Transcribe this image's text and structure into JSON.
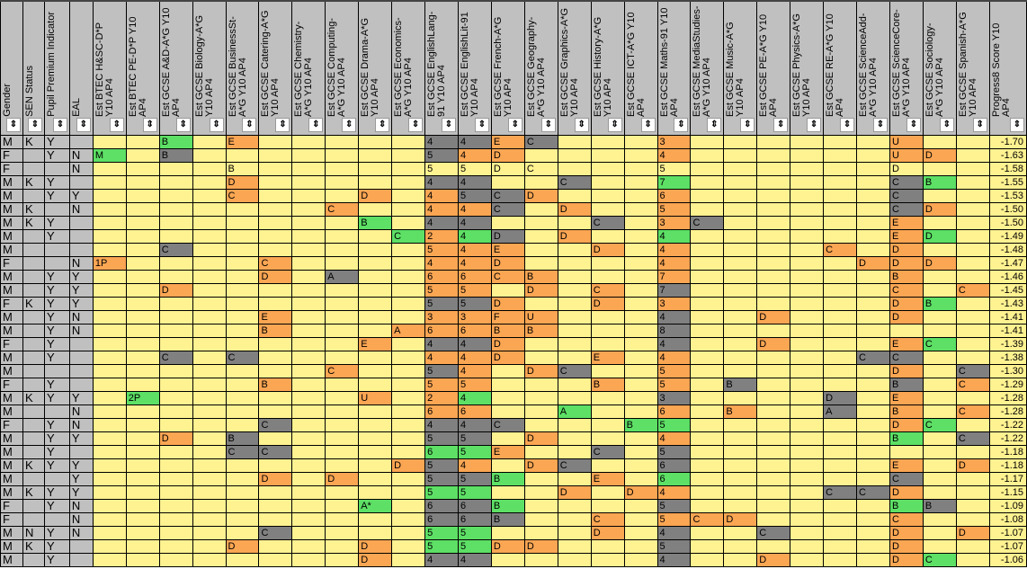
{
  "colors": {
    "yellow": "#fff291",
    "green": "#5de065",
    "orange": "#fba653",
    "dark": "#808080",
    "header": "#c0c0c0"
  },
  "sort_icon": "up-down-arrows-icon",
  "fixed_headers": [
    "Gender",
    "SEN Status",
    "Pupil Premium Indicator",
    "EAL"
  ],
  "subject_headers": [
    "Est BTEC H&SC-D*P Y10 AP4",
    "Est BTEC PE-D*P Y10 AP4",
    "Est GCSE A&D-A*G Y10 AP4",
    "Est GCSE Biology-A*G Y10 AP4",
    "Est GCSE BusinessSt-A*G Y10 AP4",
    "Est GCSE Catering-A*G Y10 AP4",
    "Est GCSE Chemistry-A*G Y10 AP4",
    "Est GCSE Computing-A*G Y10 AP4",
    "Est GCSE Drama-A*G Y10 AP4",
    "Est GCSE Economics-A*G Y10 AP4",
    "Est GCSE EnglishLang-91 Y10 AP4",
    "Est GCSE EnglishLit-91 Y10 AP4",
    "Est GCSE French-A*G Y10 AP4",
    "Est GCSE Geography-A*G Y10 AP4",
    "Est GCSE Graphics-A*G Y10 AP4",
    "Est GCSE History-A*G Y10 AP4",
    "Est GCSE ICT-A*G Y10 AP4",
    "Est GCSE Maths-91 Y10 AP4",
    "Est GCSE MediaStudies-A*G Y10 AP4",
    "Est GCSE Music-A*G Y10 AP4",
    "Est GCSE PE-A*G Y10 AP4",
    "Est GCSE Physics-A*G Y10 AP4",
    "Est GCSE RE-A*G Y10 AP4",
    "Est GCSE ScienceAdd-A*G Y10 AP4",
    "Est GCSE ScienceCore-A*G Y10 AP4",
    "Est GCSE Sociology-A*G Y10 AP4",
    "Est GCSE Spanish-A*G Y10 AP4"
  ],
  "p8_header": "Progress8 Score Y10 AP4",
  "rows": [
    {
      "f": [
        "M",
        "K",
        "Y",
        ""
      ],
      "c": {
        "2": [
          "B",
          "g"
        ],
        "4": [
          "E",
          "o"
        ],
        "10": [
          "4",
          "d"
        ],
        "11": [
          "4",
          "d"
        ],
        "12": [
          "E",
          "o"
        ],
        "13": [
          "C",
          "d"
        ],
        "17": [
          "3",
          "o"
        ],
        "24": [
          "U",
          "o"
        ]
      },
      "p8": "-1.70"
    },
    {
      "f": [
        "F",
        "",
        "Y",
        "N"
      ],
      "c": {
        "0": [
          "M",
          "g"
        ],
        "2": [
          "B",
          "d"
        ],
        "10": [
          "5",
          "d"
        ],
        "11": [
          "4",
          "o"
        ],
        "12": [
          "D",
          "o"
        ],
        "17": [
          "4",
          "o"
        ],
        "24": [
          "U",
          "o"
        ],
        "25": [
          "D",
          "o"
        ]
      },
      "p8": "-1.63"
    },
    {
      "f": [
        "F",
        "",
        "",
        "N"
      ],
      "c": {
        "4": [
          "B",
          "y"
        ],
        "10": [
          "5",
          "y"
        ],
        "11": [
          "5",
          "y"
        ],
        "12": [
          "D",
          "y"
        ],
        "13": [
          "C",
          "y"
        ],
        "17": [
          "5",
          "y"
        ],
        "24": [
          "D",
          "y"
        ]
      },
      "p8": "-1.58"
    },
    {
      "f": [
        "M",
        "K",
        "Y",
        ""
      ],
      "c": {
        "4": [
          "D",
          "o"
        ],
        "10": [
          "4",
          "d"
        ],
        "11": [
          "4",
          "d"
        ],
        "14": [
          "C",
          "d"
        ],
        "17": [
          "7",
          "g"
        ],
        "24": [
          "C",
          "d"
        ],
        "25": [
          "B",
          "g"
        ]
      },
      "p8": "-1.55"
    },
    {
      "f": [
        "M",
        "",
        "Y",
        "Y"
      ],
      "c": {
        "4": [
          "C",
          "o"
        ],
        "8": [
          "D",
          "o"
        ],
        "10": [
          "4",
          "o"
        ],
        "11": [
          "5",
          "d"
        ],
        "12": [
          "C",
          "d"
        ],
        "13": [
          "D",
          "o"
        ],
        "17": [
          "6",
          "o"
        ],
        "24": [
          "C",
          "d"
        ]
      },
      "p8": "-1.53"
    },
    {
      "f": [
        "M",
        "K",
        "",
        "N"
      ],
      "c": {
        "7": [
          "C",
          "o"
        ],
        "10": [
          "4",
          "o"
        ],
        "11": [
          "4",
          "o"
        ],
        "12": [
          "C",
          "d"
        ],
        "14": [
          "D",
          "o"
        ],
        "17": [
          "5",
          "o"
        ],
        "24": [
          "C",
          "d"
        ],
        "25": [
          "D",
          "o"
        ]
      },
      "p8": "-1.50"
    },
    {
      "f": [
        "M",
        "K",
        "Y",
        ""
      ],
      "c": {
        "8": [
          "B",
          "g"
        ],
        "10": [
          "4",
          "d"
        ],
        "11": [
          "4",
          "d"
        ],
        "15": [
          "C",
          "d"
        ],
        "17": [
          "3",
          "o"
        ],
        "18": [
          "C",
          "d"
        ],
        "24": [
          "E",
          "o"
        ]
      },
      "p8": "-1.50"
    },
    {
      "f": [
        "M",
        "",
        "Y",
        ""
      ],
      "c": {
        "9": [
          "C",
          "g"
        ],
        "10": [
          "2",
          "o"
        ],
        "11": [
          "4",
          "g"
        ],
        "12": [
          "D",
          "d"
        ],
        "14": [
          "D",
          "o"
        ],
        "17": [
          "4",
          "g"
        ],
        "24": [
          "E",
          "o"
        ],
        "25": [
          "D",
          "g"
        ]
      },
      "p8": "-1.49"
    },
    {
      "f": [
        "M",
        "",
        "",
        ""
      ],
      "c": {
        "2": [
          "C",
          "d"
        ],
        "10": [
          "5",
          "o"
        ],
        "11": [
          "4",
          "o"
        ],
        "12": [
          "E",
          "o"
        ],
        "15": [
          "D",
          "o"
        ],
        "17": [
          "4",
          "o"
        ],
        "22": [
          "C",
          "o"
        ],
        "24": [
          "D",
          "o"
        ]
      },
      "p8": "-1.48"
    },
    {
      "f": [
        "F",
        "",
        "",
        "N"
      ],
      "c": {
        "0": [
          "1P",
          "o"
        ],
        "5": [
          "C",
          "o"
        ],
        "10": [
          "4",
          "o"
        ],
        "11": [
          "4",
          "o"
        ],
        "12": [
          "D",
          "o"
        ],
        "17": [
          "4",
          "o"
        ],
        "23": [
          "D",
          "o"
        ],
        "24": [
          "D",
          "o"
        ],
        "25": [
          "D",
          "o"
        ]
      },
      "p8": "-1.47"
    },
    {
      "f": [
        "M",
        "",
        "Y",
        "Y"
      ],
      "c": {
        "5": [
          "D",
          "o"
        ],
        "7": [
          "A",
          "d"
        ],
        "10": [
          "6",
          "o"
        ],
        "11": [
          "6",
          "o"
        ],
        "12": [
          "C",
          "o"
        ],
        "13": [
          "B",
          "o"
        ],
        "17": [
          "7",
          "o"
        ],
        "24": [
          "B",
          "o"
        ]
      },
      "p8": "-1.46"
    },
    {
      "f": [
        "M",
        "",
        "Y",
        "Y"
      ],
      "c": {
        "2": [
          "D",
          "o"
        ],
        "10": [
          "5",
          "o"
        ],
        "11": [
          "5",
          "o"
        ],
        "13": [
          "D",
          "o"
        ],
        "15": [
          "C",
          "o"
        ],
        "17": [
          "7",
          "d"
        ],
        "24": [
          "C",
          "o"
        ],
        "26": [
          "C",
          "o"
        ]
      },
      "p8": "-1.45"
    },
    {
      "f": [
        "F",
        "K",
        "Y",
        "Y"
      ],
      "c": {
        "10": [
          "5",
          "d"
        ],
        "11": [
          "5",
          "d"
        ],
        "12": [
          "D",
          "o"
        ],
        "15": [
          "D",
          "o"
        ],
        "17": [
          "3",
          "o"
        ],
        "24": [
          "D",
          "o"
        ],
        "25": [
          "B",
          "g"
        ]
      },
      "p8": "-1.43"
    },
    {
      "f": [
        "M",
        "",
        "Y",
        "N"
      ],
      "c": {
        "5": [
          "E",
          "o"
        ],
        "10": [
          "3",
          "o"
        ],
        "11": [
          "3",
          "o"
        ],
        "12": [
          "F",
          "o"
        ],
        "13": [
          "U",
          "o"
        ],
        "17": [
          "4",
          "d"
        ],
        "20": [
          "D",
          "o"
        ],
        "24": [
          "D",
          "o"
        ]
      },
      "p8": "-1.41"
    },
    {
      "f": [
        "M",
        "",
        "Y",
        "N"
      ],
      "c": {
        "5": [
          "B",
          "o"
        ],
        "9": [
          "A",
          "o"
        ],
        "10": [
          "6",
          "o"
        ],
        "11": [
          "6",
          "o"
        ],
        "12": [
          "B",
          "o"
        ],
        "13": [
          "B",
          "o"
        ],
        "17": [
          "8",
          "d"
        ]
      },
      "p8": "-1.41"
    },
    {
      "f": [
        "F",
        "",
        "Y",
        ""
      ],
      "c": {
        "8": [
          "E",
          "o"
        ],
        "10": [
          "4",
          "d"
        ],
        "11": [
          "4",
          "d"
        ],
        "12": [
          "D",
          "o"
        ],
        "17": [
          "4",
          "d"
        ],
        "20": [
          "D",
          "o"
        ],
        "24": [
          "E",
          "o"
        ],
        "25": [
          "C",
          "g"
        ]
      },
      "p8": "-1.39"
    },
    {
      "f": [
        "M",
        "",
        "Y",
        ""
      ],
      "c": {
        "2": [
          "C",
          "d"
        ],
        "4": [
          "C",
          "d"
        ],
        "10": [
          "4",
          "o"
        ],
        "11": [
          "4",
          "o"
        ],
        "12": [
          "D",
          "o"
        ],
        "15": [
          "E",
          "o"
        ],
        "17": [
          "4",
          "o"
        ],
        "23": [
          "C",
          "d"
        ],
        "24": [
          "C",
          "d"
        ]
      },
      "p8": "-1.38"
    },
    {
      "f": [
        "M",
        "",
        "",
        ""
      ],
      "c": {
        "7": [
          "C",
          "o"
        ],
        "10": [
          "5",
          "d"
        ],
        "11": [
          "4",
          "o"
        ],
        "13": [
          "D",
          "o"
        ],
        "14": [
          "C",
          "d"
        ],
        "17": [
          "5",
          "o"
        ],
        "24": [
          "D",
          "o"
        ],
        "26": [
          "C",
          "d"
        ]
      },
      "p8": "-1.30"
    },
    {
      "f": [
        "F",
        "",
        "Y",
        ""
      ],
      "c": {
        "5": [
          "B",
          "o"
        ],
        "10": [
          "5",
          "o"
        ],
        "11": [
          "5",
          "o"
        ],
        "15": [
          "B",
          "o"
        ],
        "17": [
          "5",
          "o"
        ],
        "19": [
          "B",
          "d"
        ],
        "24": [
          "B",
          "d"
        ],
        "26": [
          "C",
          "o"
        ]
      },
      "p8": "-1.29"
    },
    {
      "f": [
        "M",
        "K",
        "Y",
        "Y"
      ],
      "c": {
        "1": [
          "2P",
          "g"
        ],
        "8": [
          "U",
          "o"
        ],
        "10": [
          "2",
          "o"
        ],
        "11": [
          "4",
          "g"
        ],
        "17": [
          "3",
          "d"
        ],
        "22": [
          "D",
          "d"
        ],
        "24": [
          "E",
          "o"
        ]
      },
      "p8": "-1.28"
    },
    {
      "f": [
        "M",
        "",
        "",
        "N"
      ],
      "c": {
        "10": [
          "6",
          "o"
        ],
        "11": [
          "6",
          "o"
        ],
        "14": [
          "A",
          "g"
        ],
        "17": [
          "6",
          "o"
        ],
        "19": [
          "B",
          "o"
        ],
        "22": [
          "A",
          "d"
        ],
        "24": [
          "B",
          "o"
        ],
        "26": [
          "C",
          "o"
        ]
      },
      "p8": "-1.28"
    },
    {
      "f": [
        "F",
        "",
        "Y",
        "N"
      ],
      "c": {
        "5": [
          "C",
          "d"
        ],
        "10": [
          "4",
          "d"
        ],
        "11": [
          "4",
          "d"
        ],
        "12": [
          "C",
          "d"
        ],
        "16": [
          "B",
          "g"
        ],
        "17": [
          "5",
          "g"
        ],
        "24": [
          "D",
          "o"
        ],
        "25": [
          "C",
          "g"
        ]
      },
      "p8": "-1.22"
    },
    {
      "f": [
        "M",
        "",
        "Y",
        "Y"
      ],
      "c": {
        "2": [
          "D",
          "o"
        ],
        "4": [
          "B",
          "d"
        ],
        "10": [
          "5",
          "d"
        ],
        "11": [
          "5",
          "d"
        ],
        "13": [
          "D",
          "o"
        ],
        "17": [
          "4",
          "o"
        ],
        "24": [
          "B",
          "g"
        ],
        "26": [
          "C",
          "d"
        ]
      },
      "p8": "-1.22"
    },
    {
      "f": [
        "M",
        "",
        "Y",
        ""
      ],
      "c": {
        "4": [
          "C",
          "d"
        ],
        "5": [
          "C",
          "d"
        ],
        "10": [
          "6",
          "g"
        ],
        "11": [
          "5",
          "g"
        ],
        "12": [
          "E",
          "o"
        ],
        "15": [
          "C",
          "d"
        ],
        "17": [
          "5",
          "d"
        ]
      },
      "p8": "-1.18"
    },
    {
      "f": [
        "M",
        "K",
        "Y",
        "Y"
      ],
      "c": {
        "9": [
          "D",
          "o"
        ],
        "10": [
          "5",
          "d"
        ],
        "11": [
          "4",
          "o"
        ],
        "13": [
          "D",
          "o"
        ],
        "14": [
          "C",
          "d"
        ],
        "17": [
          "6",
          "d"
        ],
        "24": [
          "E",
          "o"
        ],
        "26": [
          "D",
          "o"
        ]
      },
      "p8": "-1.18"
    },
    {
      "f": [
        "M",
        "",
        "",
        "Y"
      ],
      "c": {
        "5": [
          "D",
          "o"
        ],
        "7": [
          "D",
          "o"
        ],
        "10": [
          "5",
          "d"
        ],
        "11": [
          "5",
          "d"
        ],
        "12": [
          "B",
          "g"
        ],
        "15": [
          "E",
          "o"
        ],
        "17": [
          "6",
          "g"
        ],
        "24": [
          "C",
          "d"
        ]
      },
      "p8": "-1.17"
    },
    {
      "f": [
        "M",
        "K",
        "Y",
        "Y"
      ],
      "c": {
        "10": [
          "5",
          "g"
        ],
        "11": [
          "5",
          "g"
        ],
        "14": [
          "D",
          "o"
        ],
        "16": [
          "D",
          "o"
        ],
        "17": [
          "4",
          "o"
        ],
        "22": [
          "C",
          "d"
        ],
        "23": [
          "C",
          "d"
        ],
        "24": [
          "D",
          "o"
        ]
      },
      "p8": "-1.15"
    },
    {
      "f": [
        "F",
        "",
        "Y",
        "N"
      ],
      "c": {
        "8": [
          "A*",
          "g"
        ],
        "10": [
          "6",
          "d"
        ],
        "11": [
          "6",
          "d"
        ],
        "12": [
          "B",
          "g"
        ],
        "17": [
          "5",
          "d"
        ],
        "24": [
          "B",
          "g"
        ],
        "25": [
          "B",
          "d"
        ]
      },
      "p8": "-1.09"
    },
    {
      "f": [
        "F",
        "",
        "",
        "N"
      ],
      "c": {
        "10": [
          "6",
          "d"
        ],
        "11": [
          "6",
          "d"
        ],
        "12": [
          "B",
          "d"
        ],
        "15": [
          "C",
          "o"
        ],
        "17": [
          "5",
          "o"
        ],
        "18": [
          "C",
          "o"
        ],
        "19": [
          "D",
          "o"
        ],
        "24": [
          "C",
          "o"
        ]
      },
      "p8": "-1.08"
    },
    {
      "f": [
        "M",
        "N",
        "Y",
        "N"
      ],
      "c": {
        "5": [
          "C",
          "d"
        ],
        "10": [
          "5",
          "g"
        ],
        "11": [
          "5",
          "g"
        ],
        "15": [
          "D",
          "o"
        ],
        "17": [
          "4",
          "d"
        ],
        "20": [
          "C",
          "d"
        ],
        "24": [
          "D",
          "o"
        ],
        "26": [
          "D",
          "o"
        ]
      },
      "p8": "-1.07"
    },
    {
      "f": [
        "M",
        "K",
        "Y",
        ""
      ],
      "c": {
        "4": [
          "D",
          "o"
        ],
        "8": [
          "D",
          "o"
        ],
        "10": [
          "5",
          "g"
        ],
        "11": [
          "5",
          "g"
        ],
        "12": [
          "D",
          "o"
        ],
        "13": [
          "D",
          "o"
        ],
        "17": [
          "5",
          "d"
        ],
        "24": [
          "D",
          "o"
        ]
      },
      "p8": "-1.07"
    },
    {
      "f": [
        "M",
        "",
        "Y",
        ""
      ],
      "c": {
        "8": [
          "D",
          "o"
        ],
        "10": [
          "4",
          "d"
        ],
        "11": [
          "4",
          "d"
        ],
        "17": [
          "4",
          "d"
        ],
        "20": [
          "D",
          "o"
        ],
        "24": [
          "D",
          "o"
        ],
        "25": [
          "C",
          "g"
        ]
      },
      "p8": "-1.06"
    }
  ]
}
